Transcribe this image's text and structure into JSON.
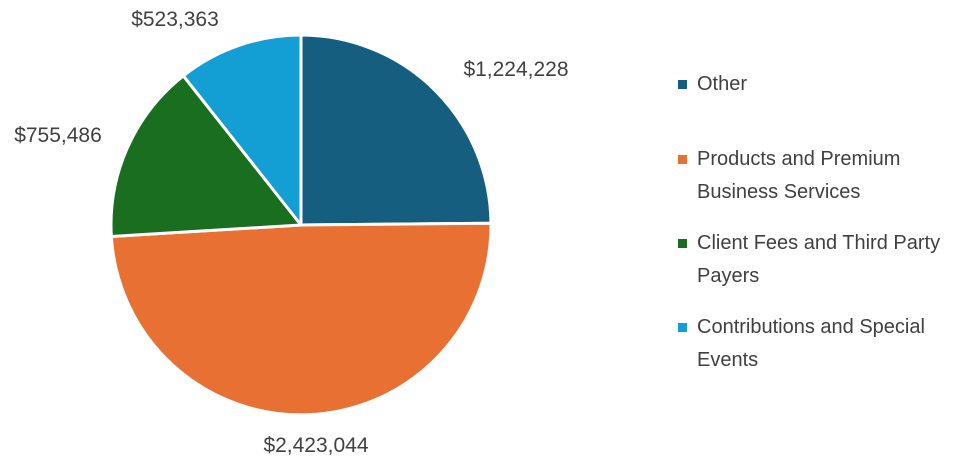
{
  "chart_data": {
    "type": "pie",
    "title": "",
    "slices": [
      {
        "label": "Other",
        "value": 1224228,
        "display": "$1,224,228",
        "color": "#165e80"
      },
      {
        "label": "Products and Premium Business Services",
        "value": 2423044,
        "display": "$2,423,044",
        "color": "#e87033"
      },
      {
        "label": "Client Fees and Third Party Payers",
        "value": 755486,
        "display": "$755,486",
        "color": "#1a6e1f"
      },
      {
        "label": "Contributions and Special Events",
        "value": 523363,
        "display": "$523,363",
        "color": "#139ed4"
      }
    ],
    "start_angle": "12 o'clock",
    "direction": "clockwise",
    "legend_position": "right",
    "legend": {
      "items": [
        {
          "lines": [
            "Other"
          ],
          "color": "#165e80"
        },
        {
          "lines": [
            "Products and Premium",
            "Business Services"
          ],
          "color": "#e87033"
        },
        {
          "lines": [
            "Client Fees and Third Party",
            "Payers"
          ],
          "color": "#1a6e1f"
        },
        {
          "lines": [
            "Contributions and Special",
            "Events"
          ],
          "color": "#139ed4"
        }
      ]
    }
  }
}
